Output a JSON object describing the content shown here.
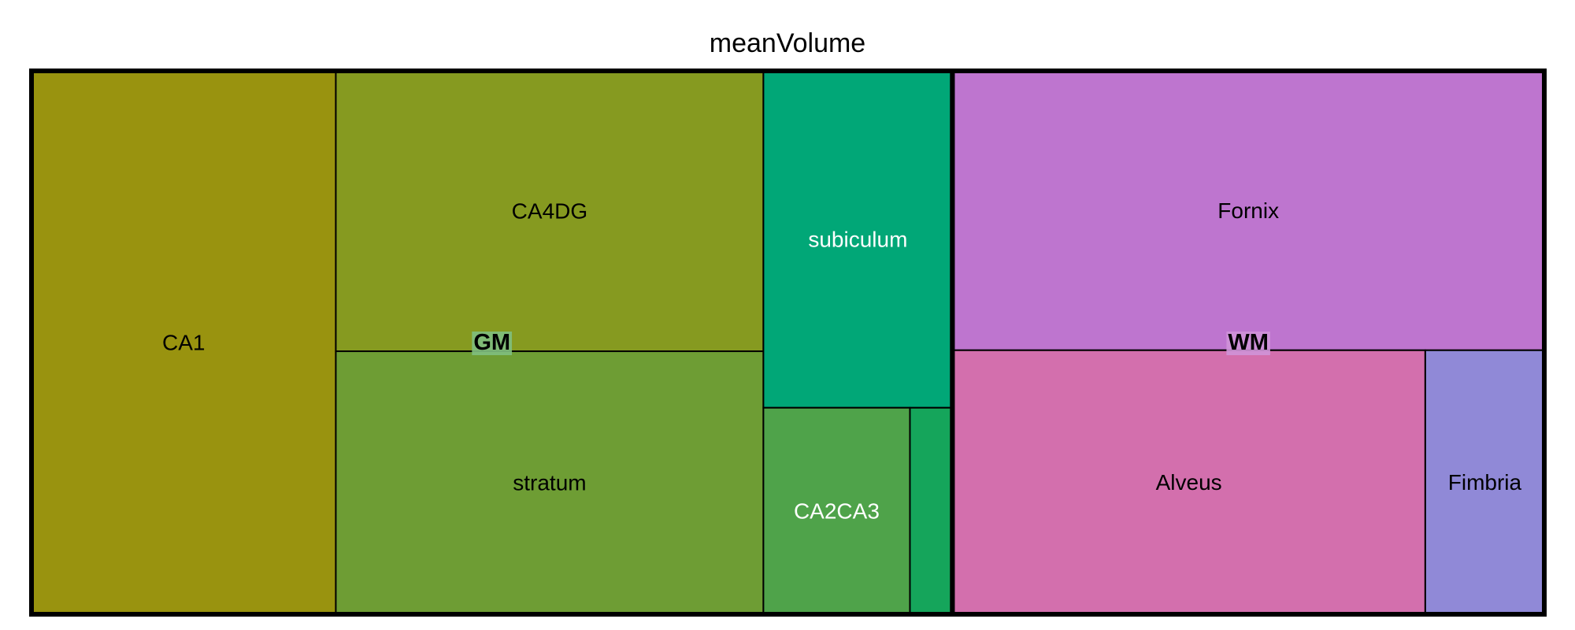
{
  "chart_data": {
    "type": "treemap",
    "title": "meanVolume",
    "groups": [
      {
        "name": "GM",
        "label_bg": "#7fbf7f",
        "children": [
          {
            "name": "CA1",
            "label": "CA1",
            "value": 1000,
            "color": "#99930f",
            "text_color": "#000000"
          },
          {
            "name": "CA4DG",
            "label": "CA4DG",
            "value": 725,
            "color": "#869a20",
            "text_color": "#000000"
          },
          {
            "name": "stratum",
            "label": "stratum",
            "value": 680,
            "color": "#6e9d34",
            "text_color": "#000000"
          },
          {
            "name": "subiculum",
            "label": "subiculum",
            "value": 385,
            "color": "#01a777",
            "text_color": "#ffffff"
          },
          {
            "name": "CA2CA3",
            "label": "CA2CA3",
            "value": 183,
            "color": "#4fa34a",
            "text_color": "#ffffff"
          },
          {
            "name": "unlabeled",
            "label": "",
            "value": 53,
            "color": "#15a55b",
            "text_color": "#ffffff"
          }
        ]
      },
      {
        "name": "WM",
        "label_bg": "#cf94d8",
        "children": [
          {
            "name": "Fornix",
            "label": "Fornix",
            "value": 1000,
            "color": "#be75cf",
            "text_color": "#000000"
          },
          {
            "name": "Alveus",
            "label": "Alveus",
            "value": 755,
            "color": "#d36fad",
            "text_color": "#000000"
          },
          {
            "name": "Fimbria",
            "label": "Fimbria",
            "value": 190,
            "color": "#9089d7",
            "text_color": "#000000"
          }
        ]
      }
    ]
  }
}
